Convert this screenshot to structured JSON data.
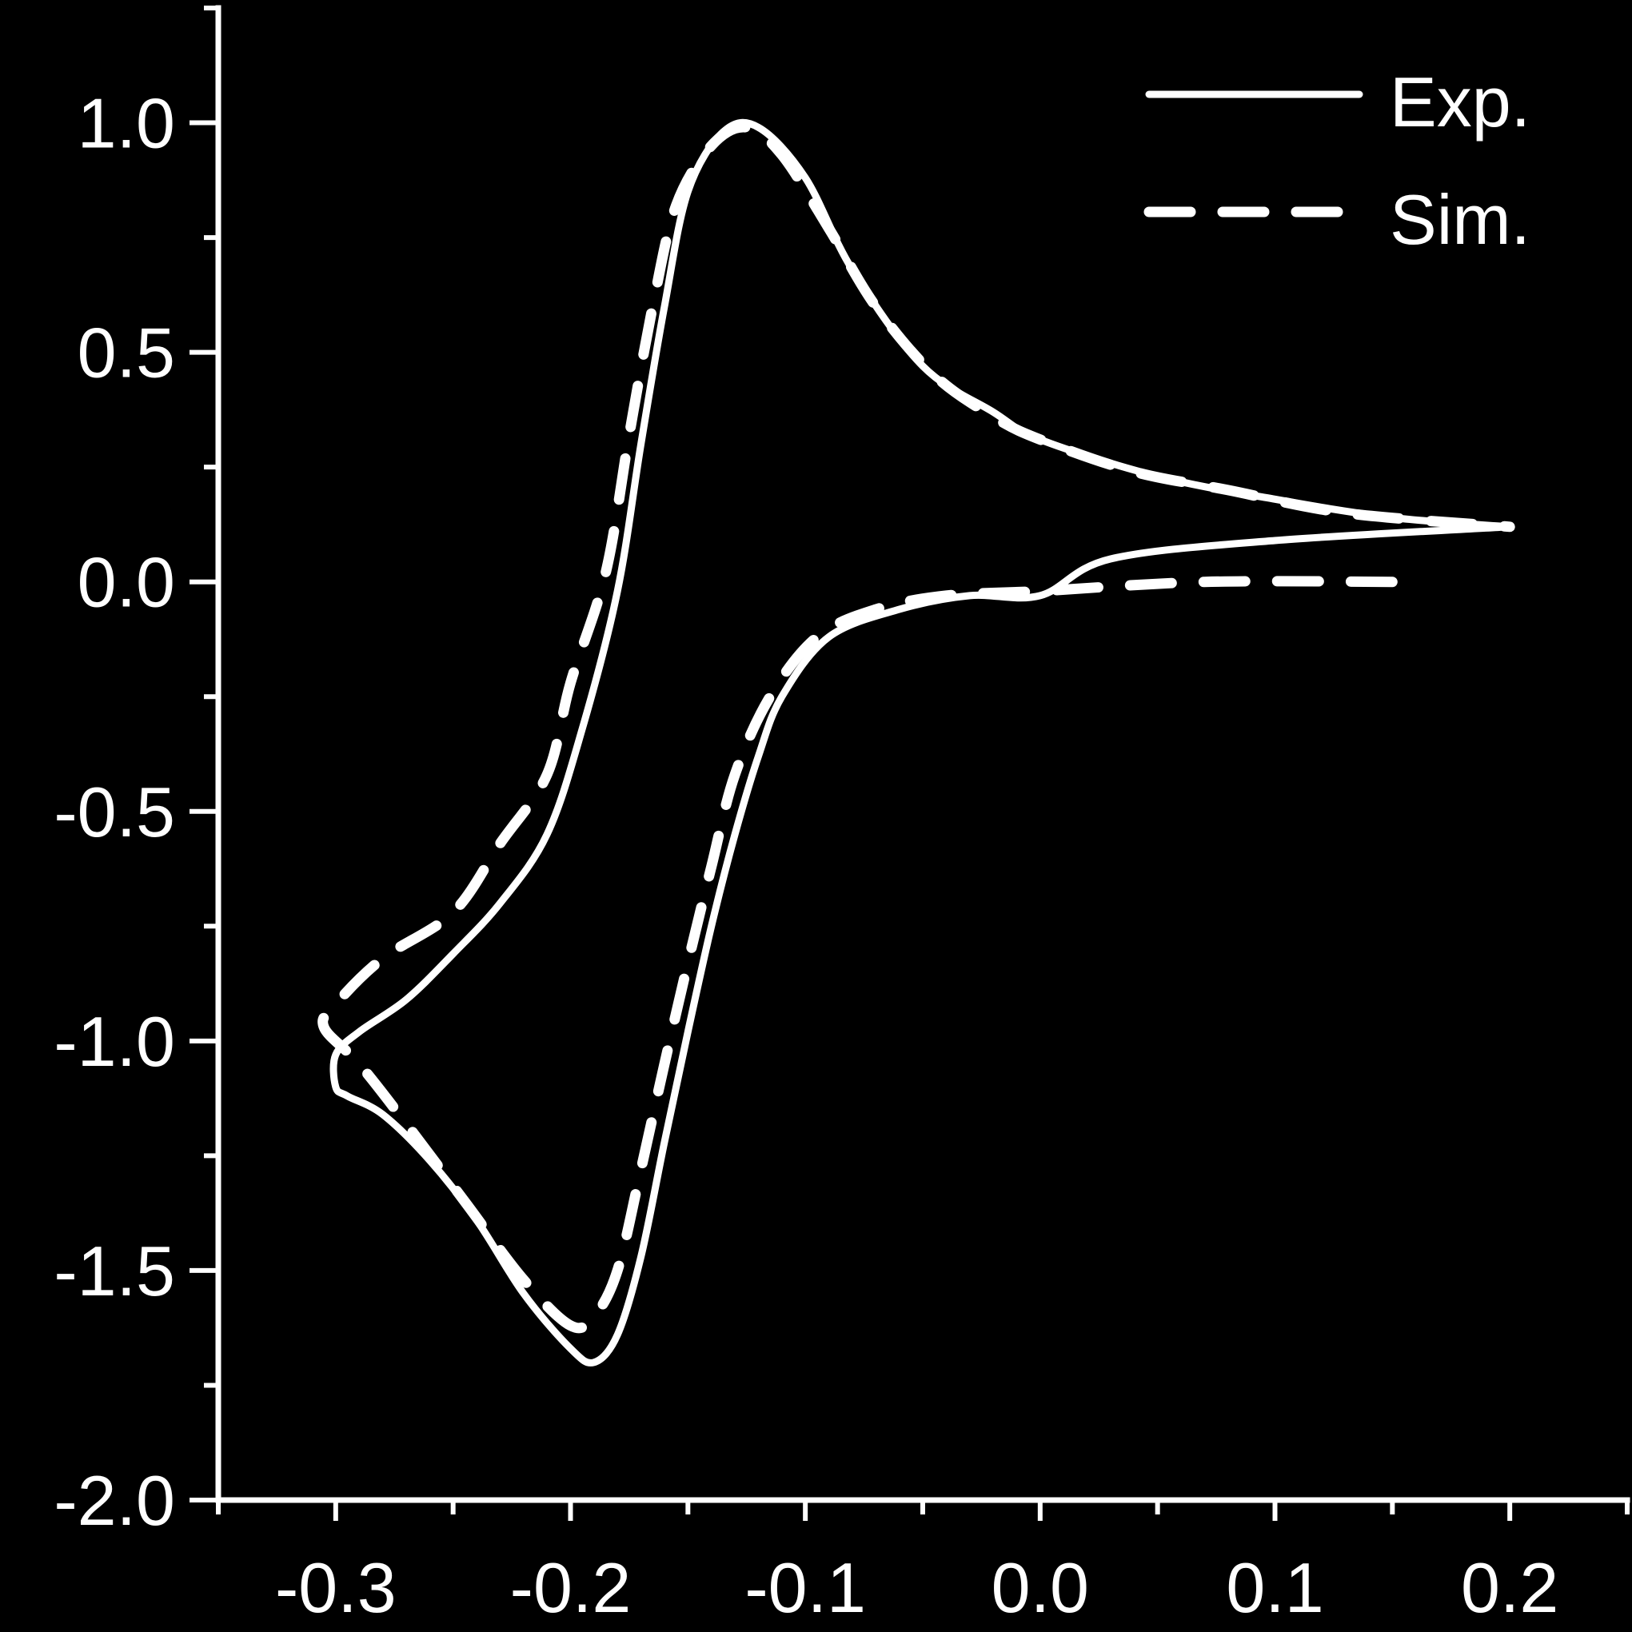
{
  "chart_data": {
    "type": "line",
    "title": "",
    "xlabel": "",
    "ylabel": "",
    "xlim": [
      -0.35,
      0.25
    ],
    "ylim": [
      -2.0,
      1.25
    ],
    "x_ticks": [
      -0.3,
      -0.2,
      -0.1,
      0.0,
      0.1,
      0.2
    ],
    "x_tick_labels": [
      "-0.3",
      "-0.2",
      "-0.1",
      "0.0",
      "0.1",
      "0.2"
    ],
    "y_ticks": [
      1.0,
      0.5,
      0.0,
      -0.5,
      -1.0,
      -1.5,
      -2.0
    ],
    "y_tick_labels": [
      "1.0",
      "0.5",
      "0.0",
      "-0.5",
      "-1.0",
      "-1.5",
      "-2.0"
    ],
    "grid": false,
    "legend_position": "top-right",
    "colors": {
      "background": "#000000",
      "foreground": "#ffffff"
    },
    "series": [
      {
        "name": "Exp.",
        "style": "solid",
        "points": [
          [
            0.2,
            0.12
          ],
          [
            0.1,
            0.09
          ],
          [
            0.03,
            0.05
          ],
          [
            0.0,
            -0.03
          ],
          [
            -0.03,
            -0.03
          ],
          [
            -0.06,
            -0.06
          ],
          [
            -0.09,
            -0.12
          ],
          [
            -0.11,
            -0.25
          ],
          [
            -0.12,
            -0.38
          ],
          [
            -0.13,
            -0.55
          ],
          [
            -0.14,
            -0.75
          ],
          [
            -0.15,
            -0.98
          ],
          [
            -0.16,
            -1.22
          ],
          [
            -0.17,
            -1.47
          ],
          [
            -0.18,
            -1.64
          ],
          [
            -0.19,
            -1.7
          ],
          [
            -0.2,
            -1.67
          ],
          [
            -0.22,
            -1.55
          ],
          [
            -0.24,
            -1.39
          ],
          [
            -0.26,
            -1.26
          ],
          [
            -0.28,
            -1.16
          ],
          [
            -0.295,
            -1.12
          ],
          [
            -0.3,
            -1.1
          ],
          [
            -0.3,
            -1.03
          ],
          [
            -0.29,
            -0.98
          ],
          [
            -0.27,
            -0.91
          ],
          [
            -0.25,
            -0.81
          ],
          [
            -0.23,
            -0.7
          ],
          [
            -0.21,
            -0.55
          ],
          [
            -0.195,
            -0.32
          ],
          [
            -0.18,
            -0.02
          ],
          [
            -0.17,
            0.3
          ],
          [
            -0.16,
            0.6
          ],
          [
            -0.15,
            0.85
          ],
          [
            -0.135,
            0.98
          ],
          [
            -0.12,
            0.99
          ],
          [
            -0.1,
            0.88
          ],
          [
            -0.08,
            0.68
          ],
          [
            -0.05,
            0.47
          ],
          [
            -0.02,
            0.37
          ],
          [
            0.0,
            0.31
          ],
          [
            0.05,
            0.23
          ],
          [
            0.1,
            0.18
          ],
          [
            0.15,
            0.14
          ],
          [
            0.2,
            0.12
          ]
        ]
      },
      {
        "name": "Sim.",
        "style": "dashed",
        "points": [
          [
            0.15,
            0.0
          ],
          [
            0.07,
            0.0
          ],
          [
            0.0,
            -0.02
          ],
          [
            -0.04,
            -0.03
          ],
          [
            -0.07,
            -0.06
          ],
          [
            -0.095,
            -0.12
          ],
          [
            -0.115,
            -0.25
          ],
          [
            -0.13,
            -0.42
          ],
          [
            -0.14,
            -0.62
          ],
          [
            -0.15,
            -0.83
          ],
          [
            -0.16,
            -1.05
          ],
          [
            -0.17,
            -1.28
          ],
          [
            -0.18,
            -1.5
          ],
          [
            -0.19,
            -1.6
          ],
          [
            -0.2,
            -1.62
          ],
          [
            -0.22,
            -1.52
          ],
          [
            -0.245,
            -1.35
          ],
          [
            -0.27,
            -1.18
          ],
          [
            -0.29,
            -1.05
          ],
          [
            -0.305,
            -0.97
          ],
          [
            -0.3,
            -0.92
          ],
          [
            -0.28,
            -0.82
          ],
          [
            -0.25,
            -0.72
          ],
          [
            -0.23,
            -0.57
          ],
          [
            -0.21,
            -0.42
          ],
          [
            -0.2,
            -0.22
          ],
          [
            -0.185,
            0.02
          ],
          [
            -0.175,
            0.32
          ],
          [
            -0.165,
            0.6
          ],
          [
            -0.155,
            0.82
          ],
          [
            -0.14,
            0.95
          ],
          [
            -0.125,
            0.99
          ],
          [
            -0.11,
            0.93
          ],
          [
            -0.09,
            0.77
          ],
          [
            -0.07,
            0.6
          ],
          [
            -0.045,
            0.45
          ],
          [
            -0.02,
            0.36
          ],
          [
            0.0,
            0.31
          ],
          [
            0.04,
            0.24
          ],
          [
            0.08,
            0.2
          ],
          [
            0.13,
            0.15
          ],
          [
            0.2,
            0.12
          ]
        ]
      }
    ]
  }
}
